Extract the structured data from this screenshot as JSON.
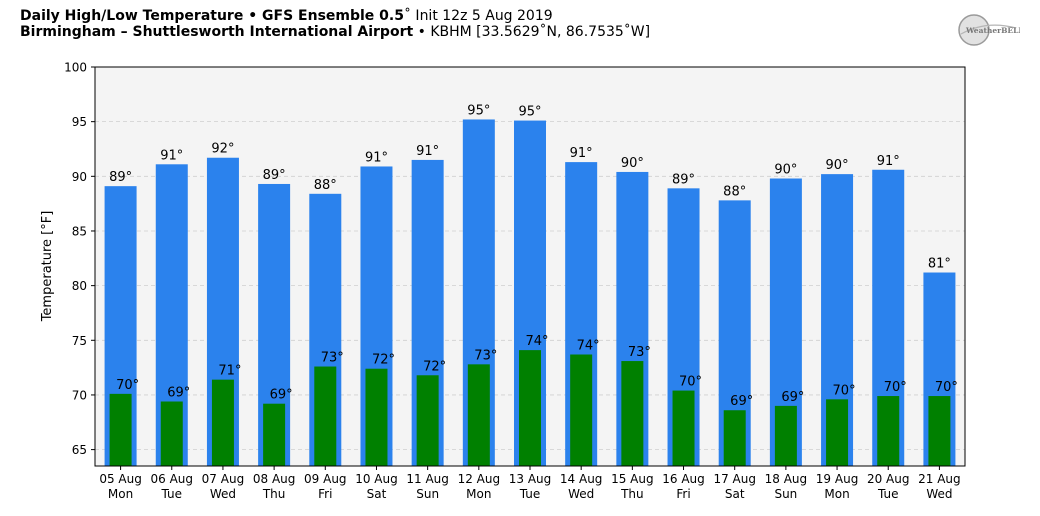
{
  "header": {
    "title_main": "Daily High/Low Temperature • GFS Ensemble 0.5",
    "title_init": "˚ Init 12z 5 Aug 2019",
    "location": "Birmingham – Shuttlesworth International Airport",
    "station": " • KBHM [33.5629˚N, 86.7535˚W]"
  },
  "logo": {
    "text": "WeatherBELL"
  },
  "colors": {
    "high": "#2b82ed",
    "low": "#008000",
    "plot_bg": "#f4f4f4"
  },
  "chart_data": {
    "type": "bar",
    "ylabel": "Temperature [°F]",
    "ylim": [
      63.5,
      100
    ],
    "yticks": [
      65,
      70,
      75,
      80,
      85,
      90,
      95,
      100
    ],
    "grid": true,
    "dates": [
      "05 Aug",
      "06 Aug",
      "07 Aug",
      "08 Aug",
      "09 Aug",
      "10 Aug",
      "11 Aug",
      "12 Aug",
      "13 Aug",
      "14 Aug",
      "15 Aug",
      "16 Aug",
      "17 Aug",
      "18 Aug",
      "19 Aug",
      "20 Aug",
      "21 Aug"
    ],
    "weekdays": [
      "Mon",
      "Tue",
      "Wed",
      "Thu",
      "Fri",
      "Sat",
      "Sun",
      "Mon",
      "Tue",
      "Wed",
      "Thu",
      "Fri",
      "Sat",
      "Sun",
      "Mon",
      "Tue",
      "Wed"
    ],
    "series": [
      {
        "name": "High",
        "values": [
          89.1,
          91.1,
          91.7,
          89.3,
          88.4,
          90.9,
          91.5,
          95.2,
          95.1,
          91.3,
          90.4,
          88.9,
          87.8,
          89.8,
          90.2,
          90.6,
          81.2
        ],
        "labels": [
          "89°",
          "91°",
          "92°",
          "89°",
          "88°",
          "91°",
          "91°",
          "95°",
          "95°",
          "91°",
          "90°",
          "89°",
          "88°",
          "90°",
          "90°",
          "91°",
          "81°"
        ]
      },
      {
        "name": "Low",
        "values": [
          70.1,
          69.4,
          71.4,
          69.2,
          72.6,
          72.4,
          71.8,
          72.8,
          74.1,
          73.7,
          73.1,
          70.4,
          68.6,
          69.0,
          69.6,
          69.9,
          69.9
        ],
        "labels": [
          "70°",
          "69°",
          "71°",
          "69°",
          "73°",
          "72°",
          "72°",
          "73°",
          "74°",
          "74°",
          "73°",
          "70°",
          "69°",
          "69°",
          "70°",
          "70°",
          "70°"
        ]
      }
    ]
  }
}
